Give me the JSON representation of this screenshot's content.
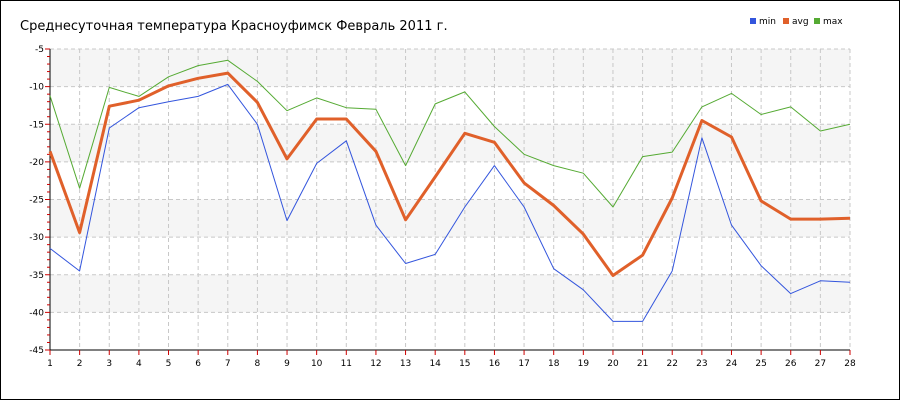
{
  "chart_data": {
    "type": "line",
    "title": "Среднесуточная температура Красноуфимск  Февраль 2011 г.",
    "xlabel": "",
    "ylabel": "",
    "categories": [
      "1",
      "2",
      "3",
      "4",
      "5",
      "6",
      "7",
      "8",
      "9",
      "10",
      "11",
      "12",
      "13",
      "14",
      "15",
      "16",
      "17",
      "18",
      "19",
      "20",
      "21",
      "22",
      "23",
      "24",
      "25",
      "26",
      "27",
      "28"
    ],
    "ylim": [
      -45,
      -5
    ],
    "yticks": [
      -5,
      -10,
      -15,
      -20,
      -25,
      -30,
      -35,
      -40,
      -45
    ],
    "grid": true,
    "legend_position": "top-right",
    "series": [
      {
        "name": "min",
        "color": "#3355dd",
        "width": 1,
        "values": [
          -31.5,
          -34.5,
          -15.5,
          -12.8,
          -12.0,
          -11.3,
          -9.7,
          -15.0,
          -27.8,
          -20.2,
          -17.2,
          -28.4,
          -33.5,
          -32.3,
          -26.0,
          -20.5,
          -26.0,
          -34.2,
          -37.0,
          -41.2,
          -41.2,
          -34.5,
          -16.8,
          -28.4,
          -33.8,
          -37.5,
          -35.8,
          -36.0
        ]
      },
      {
        "name": "avg",
        "color": "#e0602a",
        "width": 3,
        "values": [
          -18.6,
          -29.4,
          -12.6,
          -11.8,
          -9.9,
          -8.9,
          -8.2,
          -12.1,
          -19.6,
          -14.3,
          -14.3,
          -18.6,
          -27.7,
          -22.0,
          -16.2,
          -17.4,
          -22.8,
          -25.8,
          -29.6,
          -35.1,
          -32.4,
          -24.8,
          -14.5,
          -16.7,
          -25.2,
          -27.6,
          -27.6,
          -27.5
        ]
      },
      {
        "name": "max",
        "color": "#55aa33",
        "width": 1,
        "values": [
          -11.2,
          -23.5,
          -10.1,
          -11.3,
          -8.7,
          -7.2,
          -6.5,
          -9.3,
          -13.2,
          -11.5,
          -12.8,
          -13.0,
          -20.5,
          -12.3,
          -10.7,
          -15.3,
          -19.0,
          -20.5,
          -21.5,
          -26.0,
          -19.3,
          -18.7,
          -12.7,
          -10.9,
          -13.7,
          -12.7,
          -15.9,
          -15.0
        ]
      }
    ]
  }
}
